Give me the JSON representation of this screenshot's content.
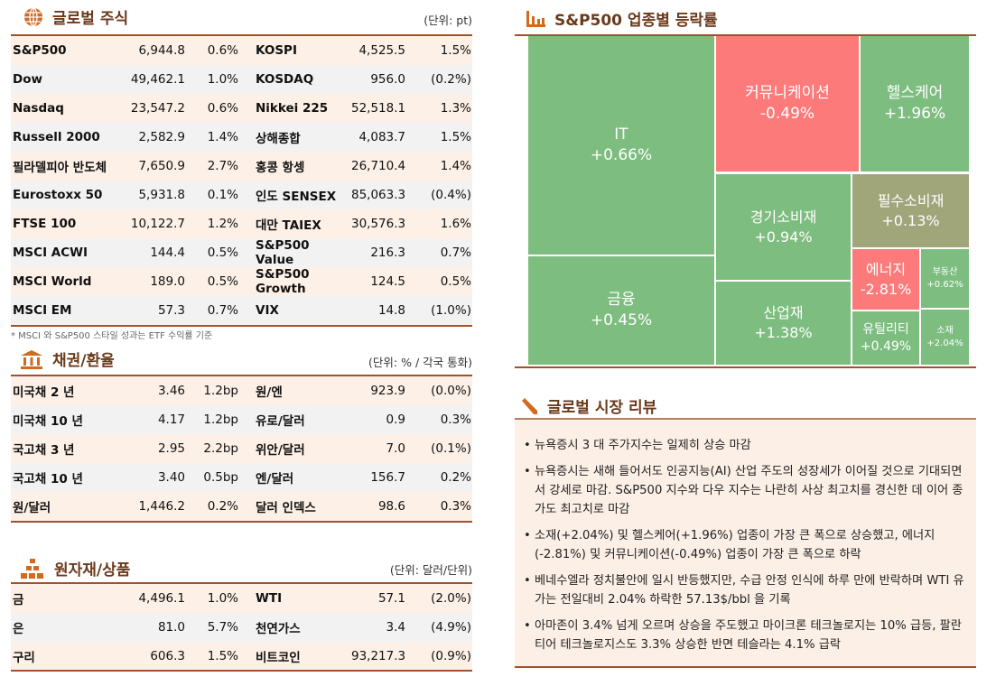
{
  "stocks": {
    "title": "글로벌 주식",
    "unit": "(단위: pt)",
    "note": "* MSCI 와 S&P500 스타일 성과는 ETF 수익률 기준",
    "rows": [
      [
        "S&P500",
        "6,944.8",
        "0.6%",
        "KOSPI",
        "4,525.5",
        "1.5%"
      ],
      [
        "Dow",
        "49,462.1",
        "1.0%",
        "KOSDAQ",
        "956.0",
        "(0.2%)"
      ],
      [
        "Nasdaq",
        "23,547.2",
        "0.6%",
        "Nikkei 225",
        "52,518.1",
        "1.3%"
      ],
      [
        "Russell 2000",
        "2,582.9",
        "1.4%",
        "상해종합",
        "4,083.7",
        "1.5%"
      ],
      [
        "필라델피아 반도체",
        "7,650.9",
        "2.7%",
        "홍콩 항셍",
        "26,710.4",
        "1.4%"
      ],
      [
        "Eurostoxx 50",
        "5,931.8",
        "0.1%",
        "인도 SENSEX",
        "85,063.3",
        "(0.4%)"
      ],
      [
        "FTSE 100",
        "10,122.7",
        "1.2%",
        "대만 TAIEX",
        "30,576.3",
        "1.6%"
      ],
      [
        "MSCI ACWI",
        "144.4",
        "0.5%",
        "S&P500 Value",
        "216.3",
        "0.7%"
      ],
      [
        "MSCI World",
        "189.0",
        "0.5%",
        "S&P500 Growth",
        "124.5",
        "0.5%"
      ],
      [
        "MSCI EM",
        "57.3",
        "0.7%",
        "VIX",
        "14.8",
        "(1.0%)"
      ]
    ]
  },
  "bonds": {
    "title": "채권/환율",
    "unit": "(단위: % / 각국 통화)",
    "rows": [
      [
        "미국채 2 년",
        "3.46",
        "1.2bp",
        "원/엔",
        "923.9",
        "(0.0%)"
      ],
      [
        "미국채 10 년",
        "4.17",
        "1.2bp",
        "유로/달러",
        "0.9",
        "0.3%"
      ],
      [
        "국고채 3 년",
        "2.95",
        "2.2bp",
        "위안/달러",
        "7.0",
        "(0.1%)"
      ],
      [
        "국고채 10 년",
        "3.40",
        "0.5bp",
        "엔/달러",
        "156.7",
        "0.2%"
      ],
      [
        "원/달러",
        "1,446.2",
        "0.2%",
        "달러 인덱스",
        "98.6",
        "0.3%"
      ]
    ]
  },
  "commodities": {
    "title": "원자재/상품",
    "unit": "(단위: 달러/단위)",
    "rows": [
      [
        "금",
        "4,496.1",
        "1.0%",
        "WTI",
        "57.1",
        "(2.0%)"
      ],
      [
        "은",
        "81.0",
        "5.7%",
        "천연가스",
        "3.4",
        "(4.9%)"
      ],
      [
        "구리",
        "606.3",
        "1.5%",
        "비트코인",
        "93,217.3",
        "(0.9%)"
      ]
    ]
  },
  "treemap": {
    "title": "S&P500 업종별 등락률",
    "colors": {
      "up": "#7dbd80",
      "down": "#fc7b7a",
      "flat": "#a0a57a"
    },
    "cells": [
      {
        "name": "IT",
        "value": "+0.66%",
        "change": 0.66
      },
      {
        "name": "금융",
        "value": "+0.45%",
        "change": 0.45
      },
      {
        "name": "커뮤니케이션",
        "value": "-0.49%",
        "change": -0.49
      },
      {
        "name": "헬스케어",
        "value": "+1.96%",
        "change": 1.96
      },
      {
        "name": "경기소비재",
        "value": "+0.94%",
        "change": 0.94
      },
      {
        "name": "필수소비재",
        "value": "+0.13%",
        "change": 0.13
      },
      {
        "name": "산업재",
        "value": "+1.38%",
        "change": 1.38
      },
      {
        "name": "에너지",
        "value": "-2.81%",
        "change": -2.81
      },
      {
        "name": "부동산",
        "value": "+0.62%",
        "change": 0.62
      },
      {
        "name": "유틸리티",
        "value": "+0.49%",
        "change": 0.49
      },
      {
        "name": "소재",
        "value": "+2.04%",
        "change": 2.04
      }
    ]
  },
  "review": {
    "title": "글로벌 시장 리뷰",
    "items": [
      "뉴욕증시 3 대 주가지수는 일제히 상승 마감",
      "뉴욕증시는 새해 들어서도 인공지능(AI) 산업 주도의 성장세가 이어질 것으로 기대되면서 강세로 마감. S&P500 지수와 다우 지수는 나란히 사상 최고치를 경신한 데 이어 종가도 최고치로 마감",
      "소재(+2.04%) 및 헬스케어(+1.96%) 업종이 가장 큰 폭으로 상승했고, 에너지(-2.81%) 및 커뮤니케이션(-0.49%) 업종이 가장 큰 폭으로 하락",
      "베네수엘라 정치불안에 일시 반등했지만, 수급 안정 인식에 하루 만에 반락하며 WTI 유가는 전일대비 2.04% 하락한 57.13$/bbl 을 기록",
      "아마존이 3.4% 넘게 오르며 상승을 주도했고 마이크론 테크놀로지는 10% 급등, 팔란티어 테크놀로지스도 3.3% 상승한 반면 테슬라는 4.1% 급락"
    ]
  }
}
